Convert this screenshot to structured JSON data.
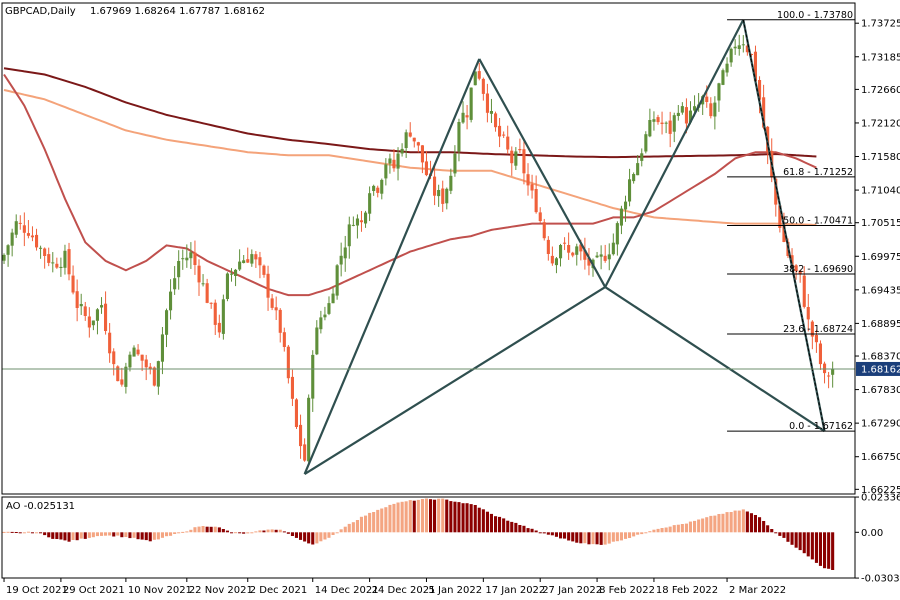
{
  "header": {
    "symbol": "GBPCAD,Daily",
    "ohlc": "1.67969 1.68264 1.67787 1.68162"
  },
  "colors": {
    "bull": "#5f8f3a",
    "bear": "#f0603a",
    "ma_fast": "#c0504d",
    "ma_mid": "#f4a37a",
    "ma_slow": "#7b1818",
    "pattern": "#2f4f4f",
    "ao_up": "#f4a582",
    "ao_down": "#8b0000"
  },
  "chart_data": [
    {
      "type": "line",
      "name": "price",
      "ylim": [
        1.6615,
        1.7405
      ],
      "y_ticks": [
        "1.73725",
        "1.73185",
        "1.72660",
        "1.72120",
        "1.71580",
        "1.71040",
        "1.70515",
        "1.69975",
        "1.69435",
        "1.68895",
        "1.68370",
        "1.67830",
        "1.67290",
        "1.66750",
        "1.66225"
      ],
      "current_price": "1.68162",
      "x_labels": [
        "19 Oct 2021",
        "29 Oct 2021",
        "10 Nov 2021",
        "22 Nov 2021",
        "2 Dec 2021",
        "14 Dec 2021",
        "24 Dec 2021",
        "5 Jan 2022",
        "17 Jan 2022",
        "27 Jan 2022",
        "8 Feb 2022",
        "18 Feb 2022",
        "2 Mar 2022"
      ],
      "fibonacci": [
        {
          "label": "100.0 - 1.73780",
          "value": 1.7378
        },
        {
          "label": "61.8 - 1.71252",
          "value": 1.71252
        },
        {
          "label": "50.0 - 1.70471",
          "value": 1.70471
        },
        {
          "label": "38.2 - 1.69690",
          "value": 1.6969
        },
        {
          "label": "23.6 - 1.68724",
          "value": 1.68724
        },
        {
          "label": "0.0 - 1.67162",
          "value": 1.67162
        }
      ],
      "pattern_points": [
        {
          "bar": 74,
          "price": 1.6647
        },
        {
          "bar": 117,
          "price": 1.7315
        },
        {
          "bar": 148,
          "price": 1.6948
        },
        {
          "bar": 182,
          "price": 1.7378
        },
        {
          "bar": 202,
          "price": 1.6716
        }
      ],
      "close_anchors": [
        [
          0,
          1.7
        ],
        [
          3,
          1.705
        ],
        [
          6,
          1.704
        ],
        [
          9,
          1.701
        ],
        [
          12,
          1.6985
        ],
        [
          15,
          1.6995
        ],
        [
          18,
          1.692
        ],
        [
          21,
          1.689
        ],
        [
          24,
          1.692
        ],
        [
          27,
          1.682
        ],
        [
          29,
          1.679
        ],
        [
          31,
          1.685
        ],
        [
          34,
          1.683
        ],
        [
          37,
          1.68
        ],
        [
          40,
          1.691
        ],
        [
          43,
          1.699
        ],
        [
          46,
          1.7
        ],
        [
          49,
          1.695
        ],
        [
          51,
          1.691
        ],
        [
          53,
          1.688
        ],
        [
          55,
          1.696
        ],
        [
          58,
          1.699
        ],
        [
          61,
          1.7
        ],
        [
          64,
          1.696
        ],
        [
          66,
          1.692
        ],
        [
          68,
          1.688
        ],
        [
          70,
          1.68
        ],
        [
          72,
          1.672
        ],
        [
          74,
          1.667
        ],
        [
          76,
          1.685
        ],
        [
          78,
          1.69
        ],
        [
          80,
          1.692
        ],
        [
          82,
          1.698
        ],
        [
          84,
          1.702
        ],
        [
          86,
          1.706
        ],
        [
          88,
          1.705
        ],
        [
          90,
          1.711
        ],
        [
          92,
          1.711
        ],
        [
          94,
          1.715
        ],
        [
          96,
          1.714
        ],
        [
          98,
          1.718
        ],
        [
          100,
          1.72
        ],
        [
          102,
          1.717
        ],
        [
          104,
          1.713
        ],
        [
          106,
          1.71
        ],
        [
          108,
          1.709
        ],
        [
          110,
          1.713
        ],
        [
          112,
          1.722
        ],
        [
          114,
          1.723
        ],
        [
          116,
          1.73
        ],
        [
          117,
          1.729
        ],
        [
          119,
          1.724
        ],
        [
          121,
          1.72
        ],
        [
          123,
          1.718
        ],
        [
          125,
          1.715
        ],
        [
          127,
          1.716
        ],
        [
          129,
          1.711
        ],
        [
          131,
          1.708
        ],
        [
          133,
          1.703
        ],
        [
          135,
          1.699
        ],
        [
          137,
          1.702
        ],
        [
          139,
          1.7
        ],
        [
          141,
          1.701
        ],
        [
          143,
          1.699
        ],
        [
          145,
          1.698
        ],
        [
          148,
          1.7
        ],
        [
          150,
          1.702
        ],
        [
          152,
          1.707
        ],
        [
          154,
          1.712
        ],
        [
          156,
          1.715
        ],
        [
          158,
          1.719
        ],
        [
          160,
          1.722
        ],
        [
          162,
          1.721
        ],
        [
          164,
          1.72
        ],
        [
          166,
          1.724
        ],
        [
          168,
          1.722
        ],
        [
          170,
          1.723
        ],
        [
          172,
          1.725
        ],
        [
          174,
          1.722
        ],
        [
          176,
          1.727
        ],
        [
          178,
          1.73
        ],
        [
          180,
          1.734
        ],
        [
          182,
          1.7345
        ],
        [
          184,
          1.732
        ],
        [
          186,
          1.725
        ],
        [
          188,
          1.716
        ],
        [
          190,
          1.708
        ],
        [
          192,
          1.702
        ],
        [
          194,
          1.698
        ],
        [
          196,
          1.696
        ],
        [
          198,
          1.689
        ],
        [
          200,
          1.685
        ],
        [
          202,
          1.68
        ],
        [
          204,
          1.6816
        ]
      ],
      "ma_fast": [
        [
          0,
          1.729
        ],
        [
          5,
          1.724
        ],
        [
          10,
          1.717
        ],
        [
          15,
          1.709
        ],
        [
          20,
          1.702
        ],
        [
          25,
          1.699
        ],
        [
          30,
          1.6975
        ],
        [
          35,
          1.699
        ],
        [
          40,
          1.7015
        ],
        [
          45,
          1.701
        ],
        [
          50,
          1.699
        ],
        [
          55,
          1.6975
        ],
        [
          60,
          1.696
        ],
        [
          65,
          1.6945
        ],
        [
          70,
          1.6935
        ],
        [
          75,
          1.6935
        ],
        [
          80,
          1.6945
        ],
        [
          85,
          1.696
        ],
        [
          90,
          1.6975
        ],
        [
          95,
          1.699
        ],
        [
          100,
          1.7005
        ],
        [
          105,
          1.7015
        ],
        [
          110,
          1.7025
        ],
        [
          115,
          1.703
        ],
        [
          120,
          1.704
        ],
        [
          125,
          1.7045
        ],
        [
          130,
          1.705
        ],
        [
          135,
          1.705
        ],
        [
          140,
          1.705
        ],
        [
          145,
          1.705
        ],
        [
          150,
          1.706
        ],
        [
          155,
          1.706
        ],
        [
          160,
          1.707
        ],
        [
          165,
          1.709
        ],
        [
          170,
          1.711
        ],
        [
          175,
          1.713
        ],
        [
          180,
          1.7155
        ],
        [
          185,
          1.7165
        ],
        [
          190,
          1.7165
        ],
        [
          195,
          1.7155
        ],
        [
          200,
          1.714
        ]
      ],
      "ma_mid": [
        [
          0,
          1.7265
        ],
        [
          10,
          1.725
        ],
        [
          20,
          1.7225
        ],
        [
          30,
          1.72
        ],
        [
          40,
          1.7185
        ],
        [
          50,
          1.7175
        ],
        [
          60,
          1.7165
        ],
        [
          70,
          1.716
        ],
        [
          80,
          1.716
        ],
        [
          90,
          1.715
        ],
        [
          100,
          1.714
        ],
        [
          110,
          1.7135
        ],
        [
          120,
          1.7135
        ],
        [
          130,
          1.7115
        ],
        [
          140,
          1.7095
        ],
        [
          150,
          1.7075
        ],
        [
          160,
          1.706
        ],
        [
          170,
          1.7055
        ],
        [
          180,
          1.705
        ],
        [
          190,
          1.705
        ],
        [
          200,
          1.7048
        ]
      ],
      "ma_slow": [
        [
          0,
          1.73
        ],
        [
          10,
          1.729
        ],
        [
          20,
          1.727
        ],
        [
          30,
          1.7245
        ],
        [
          40,
          1.7225
        ],
        [
          50,
          1.721
        ],
        [
          60,
          1.7195
        ],
        [
          70,
          1.7185
        ],
        [
          80,
          1.7178
        ],
        [
          90,
          1.717
        ],
        [
          100,
          1.7165
        ],
        [
          110,
          1.7165
        ],
        [
          120,
          1.7162
        ],
        [
          130,
          1.716
        ],
        [
          140,
          1.7158
        ],
        [
          150,
          1.7157
        ],
        [
          160,
          1.7158
        ],
        [
          170,
          1.7159
        ],
        [
          180,
          1.716
        ],
        [
          190,
          1.7162
        ],
        [
          200,
          1.7158
        ]
      ]
    },
    {
      "type": "bar",
      "name": "AO -0.025131",
      "ylim": [
        -0.0303,
        0.0234
      ],
      "y_ticks": [
        "0.023368",
        "0.00",
        "-0.030346"
      ],
      "values_anchor": [
        [
          0,
          0.0
        ],
        [
          8,
          0.0
        ],
        [
          12,
          -0.004
        ],
        [
          16,
          -0.006
        ],
        [
          20,
          -0.004
        ],
        [
          24,
          -0.002
        ],
        [
          28,
          -0.0025
        ],
        [
          32,
          -0.004
        ],
        [
          36,
          -0.006
        ],
        [
          40,
          -0.003
        ],
        [
          44,
          0.0
        ],
        [
          48,
          0.004
        ],
        [
          52,
          0.004
        ],
        [
          56,
          0.0
        ],
        [
          60,
          -0.001
        ],
        [
          64,
          0.0015
        ],
        [
          68,
          0.002
        ],
        [
          72,
          -0.004
        ],
        [
          76,
          -0.008
        ],
        [
          80,
          -0.004
        ],
        [
          84,
          0.004
        ],
        [
          88,
          0.01
        ],
        [
          92,
          0.015
        ],
        [
          96,
          0.019
        ],
        [
          100,
          0.021
        ],
        [
          104,
          0.022
        ],
        [
          108,
          0.022
        ],
        [
          112,
          0.02
        ],
        [
          116,
          0.018
        ],
        [
          120,
          0.012
        ],
        [
          124,
          0.008
        ],
        [
          128,
          0.004
        ],
        [
          132,
          0.0
        ],
        [
          136,
          -0.003
        ],
        [
          140,
          -0.006
        ],
        [
          144,
          -0.008
        ],
        [
          148,
          -0.008
        ],
        [
          152,
          -0.005
        ],
        [
          156,
          -0.002
        ],
        [
          160,
          0.002
        ],
        [
          164,
          0.004
        ],
        [
          168,
          0.006
        ],
        [
          172,
          0.009
        ],
        [
          176,
          0.012
        ],
        [
          180,
          0.014
        ],
        [
          182,
          0.015
        ],
        [
          186,
          0.01
        ],
        [
          190,
          0.0
        ],
        [
          194,
          -0.008
        ],
        [
          198,
          -0.016
        ],
        [
          202,
          -0.024
        ],
        [
          204,
          -0.0251
        ]
      ]
    }
  ]
}
